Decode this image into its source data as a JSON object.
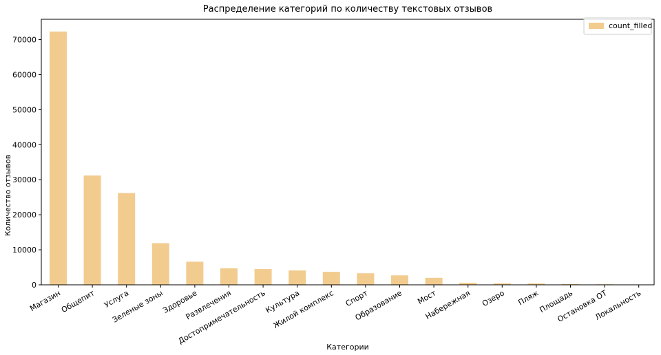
{
  "chart_data": {
    "type": "bar",
    "title": "Распределение категорий по количеству текстовых отзывов",
    "xlabel": "Категории",
    "ylabel": "Количество отзывов",
    "categories": [
      "Магазин",
      "Общепит",
      "Услуга",
      "Зеленые зоны",
      "Здоровье",
      "Развлечения",
      "Достопримечательность",
      "Культура",
      "Жилой комплекс",
      "Спорт",
      "Образование",
      "Мост",
      "Набережная",
      "Озеро",
      "Пляж",
      "Площадь",
      "Остановка ОТ",
      "Локальность"
    ],
    "series": [
      {
        "name": "count_filled",
        "color": "#f2cc8f",
        "values": [
          72300,
          31200,
          26200,
          11900,
          6600,
          4700,
          4500,
          4100,
          3700,
          3300,
          2700,
          2000,
          600,
          450,
          400,
          200,
          150,
          40
        ]
      }
    ],
    "ylim": [
      0,
      75800
    ],
    "yticks": [
      0,
      10000,
      20000,
      30000,
      40000,
      50000,
      60000,
      70000
    ],
    "grid": false,
    "legend_position": "top-right"
  }
}
